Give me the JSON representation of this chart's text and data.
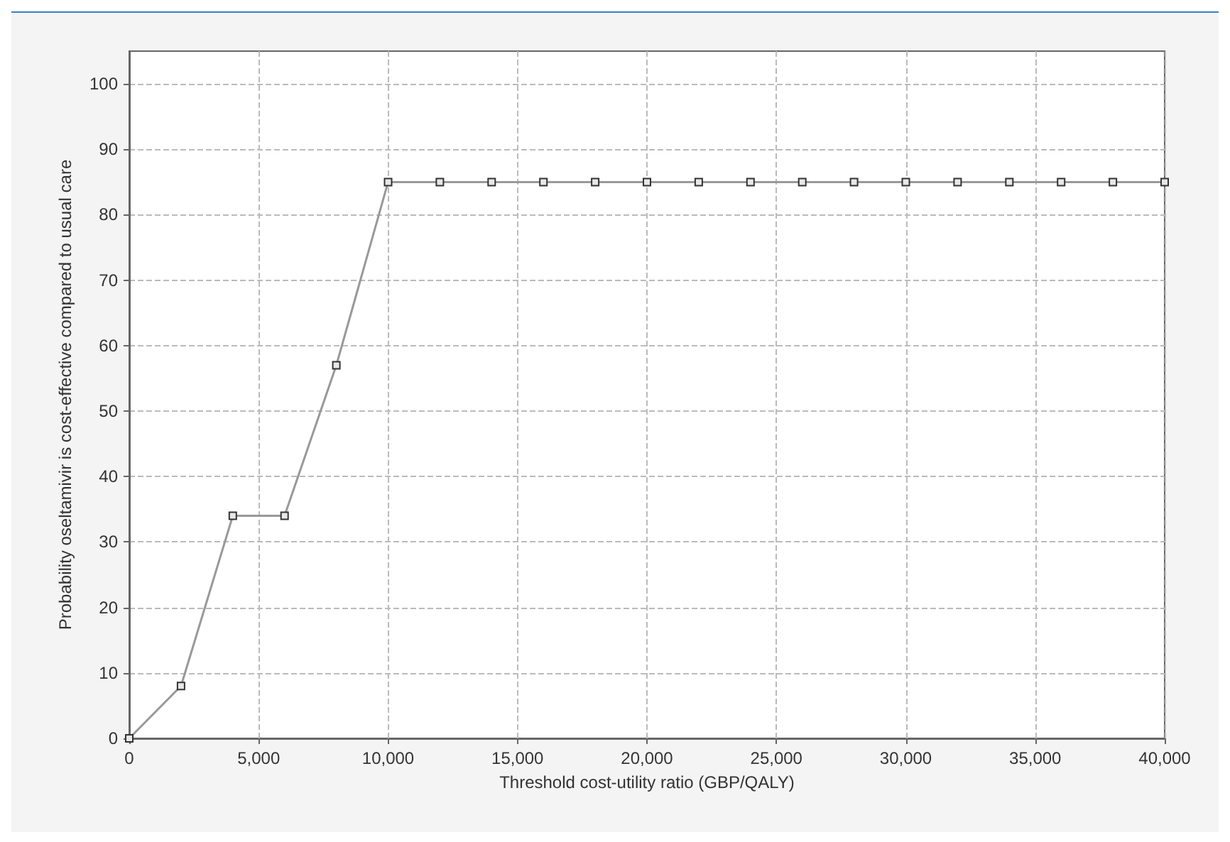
{
  "chart_data": {
    "type": "line",
    "xlabel": "Threshold cost-utility ratio (GBP/QALY)",
    "ylabel": "Probability oseltamivir is cost-effective compared to usual care",
    "x": [
      0,
      2000,
      4000,
      6000,
      8000,
      10000,
      12000,
      14000,
      16000,
      18000,
      20000,
      22000,
      24000,
      26000,
      28000,
      30000,
      32000,
      34000,
      36000,
      38000,
      40000
    ],
    "series": [
      {
        "color": "#999999",
        "values": [
          0,
          8,
          34,
          34,
          57,
          85,
          85,
          85,
          85,
          85,
          85,
          85,
          85,
          85,
          85,
          85,
          85,
          85,
          85,
          85,
          85
        ]
      }
    ],
    "xlim": [
      0,
      40000
    ],
    "xticks": [
      {
        "value": 0,
        "label": "0"
      },
      {
        "value": 5000,
        "label": "5,000"
      },
      {
        "value": 10000,
        "label": "10,000"
      },
      {
        "value": 15000,
        "label": "15,000"
      },
      {
        "value": 20000,
        "label": "20,000"
      },
      {
        "value": 25000,
        "label": "25,000"
      },
      {
        "value": 30000,
        "label": "30,000"
      },
      {
        "value": 35000,
        "label": "35,000"
      },
      {
        "value": 40000,
        "label": "40,000"
      }
    ],
    "ylim": [
      0,
      105
    ],
    "yticks": [
      0,
      10,
      20,
      30,
      40,
      50,
      60,
      70,
      80,
      90,
      100
    ],
    "grid": true,
    "marker": "square",
    "line_style": "solid"
  }
}
